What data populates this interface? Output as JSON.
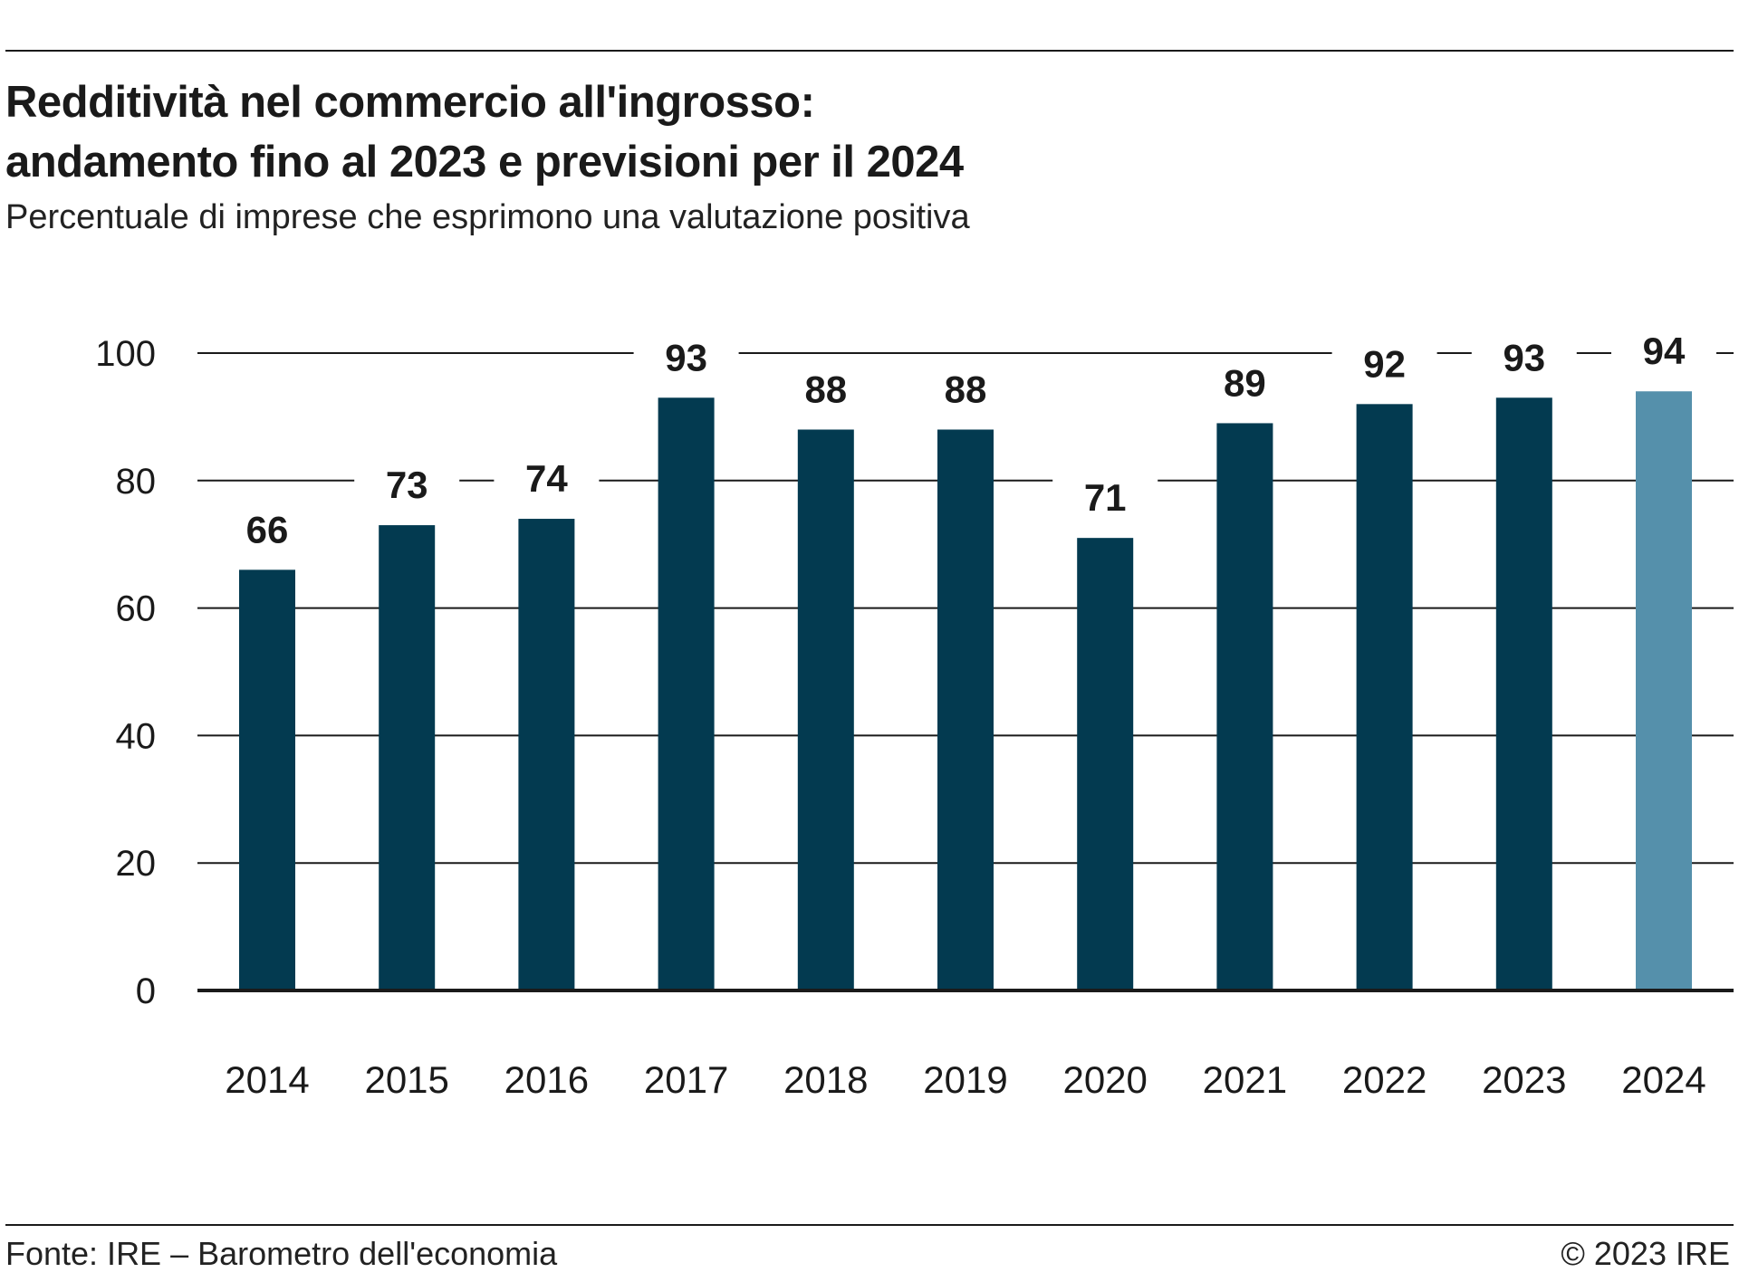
{
  "header": {
    "title_line1": "Redditività nel commercio all'ingrosso:",
    "title_line2": "andamento fino al 2023 e previsioni per il 2024",
    "subtitle": "Percentuale di imprese che esprimono una valutazione positiva"
  },
  "chart_data": {
    "type": "bar",
    "title": "Redditività nel commercio all'ingrosso: andamento fino al 2023 e previsioni per il 2024",
    "subtitle": "Percentuale di imprese che esprimono una valutazione positiva",
    "xlabel": "",
    "ylabel": "",
    "categories": [
      "2014",
      "2015",
      "2016",
      "2017",
      "2018",
      "2019",
      "2020",
      "2021",
      "2022",
      "2023",
      "2024"
    ],
    "values": [
      66,
      73,
      74,
      93,
      88,
      88,
      71,
      89,
      92,
      93,
      94
    ],
    "data_labels": [
      "66",
      "73",
      "74",
      "93",
      "88",
      "88",
      "71",
      "89",
      "92",
      "93",
      "94"
    ],
    "ylim": [
      0,
      100
    ],
    "yticks": [
      0,
      20,
      40,
      60,
      80,
      100
    ],
    "grid": true,
    "colors": {
      "bar": "#033a50",
      "highlight_bar": "#5590ab",
      "highlight_category": "2024"
    }
  },
  "footer": {
    "source": "Fonte: IRE – Barometro dell'economia",
    "copyright": "© 2023 IRE"
  }
}
